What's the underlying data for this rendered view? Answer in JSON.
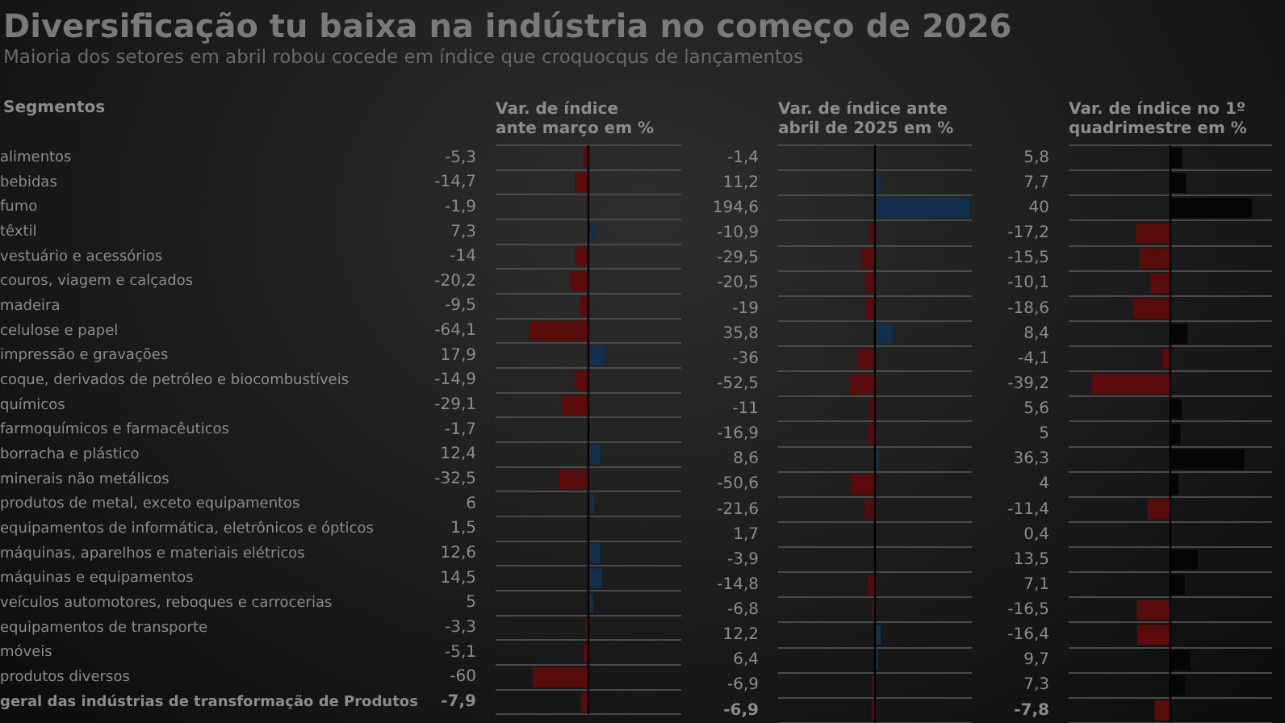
{
  "chart_data": [
    {
      "type": "bar",
      "orientation": "horizontal",
      "title": "Diversificação tu baixa na indústria no começo de 2026",
      "subtitle": "Maioria dos setores em abril robou cocede em índice que croquocqus de lançamentos",
      "xlabel": "Var. de índice ante março em %",
      "annotations": [
        "Segmentos"
      ],
      "tick_labels": "y",
      "grid": "y",
      "categories": [
        "alimentos",
        "bebidas",
        "fumo",
        "têxtil",
        "vestuário e acessórios",
        "couros, viagem e calçados",
        "madeira",
        "celulose e papel",
        "impressão e gravações",
        "coque, derivados de petróleo e biocombustíveis",
        "químicos",
        "farmoquímicos e farmacêuticos",
        "borracha e plástico",
        "minerais não metálicos",
        "produtos de metal, exceto equipamentos",
        "equipamentos de informática, eletrônicos e ópticos",
        "máquinas, aparelhos e materiais elétricos",
        "máquinas e equipamentos",
        "veículos automotores, reboques e carrocerias",
        "equipamentos de transporte",
        "móveis",
        "produtos diversos",
        "geral das indústrias de transformação de Produtos"
      ],
      "values": [
        -5.3,
        -14.7,
        -1.9,
        7.3,
        -14,
        -20.2,
        -9.5,
        -64.1,
        17.9,
        -14.9,
        -29.1,
        -1.7,
        12.4,
        -32.5,
        6,
        1.5,
        12.6,
        14.5,
        5,
        -3.3,
        -5.1,
        -60,
        -7.9
      ],
      "value_labels": [
        "-5,3",
        "-14,7",
        "-1,9",
        "7,3",
        "-14",
        "-20,2",
        "-9,5",
        "-64,1",
        "17,9",
        "-14,9",
        "-29,1",
        "-1,7",
        "12,4",
        "-32,5",
        "6",
        "1,5",
        "12,6",
        "14,5",
        "5",
        "-3,3",
        "-5,1",
        "-60",
        "-7,9"
      ],
      "colors": [
        "#5a0b0b",
        "#5a0b0b",
        "#5a0b0b",
        "#12304d",
        "#5a0b0b",
        "#5a0b0b",
        "#5a0b0b",
        "#5a0b0b",
        "#12304d",
        "#5a0b0b",
        "#5a0b0b",
        "#5a0b0b",
        "#12304d",
        "#5a0b0b",
        "#12304d",
        "#12304d",
        "#12304d",
        "#12304d",
        "#12304d",
        "#5a0b0b",
        "#5a0b0b",
        "#5a0b0b",
        "#5a0b0b"
      ]
    },
    {
      "type": "bar",
      "orientation": "horizontal",
      "xlabel": "Var. de índice ante abril de 2025 em %",
      "tick_labels": false,
      "grid": "y",
      "categories": [
        null,
        null,
        null,
        null,
        null,
        null,
        null,
        null,
        null,
        null,
        null,
        null,
        null,
        null,
        null,
        null,
        null,
        null,
        null,
        null,
        null,
        null,
        null
      ],
      "values": [
        -1.4,
        11.2,
        194.6,
        -10.9,
        -29.5,
        -20.5,
        -19,
        35.8,
        -36,
        -52.5,
        -11,
        -16.9,
        8.6,
        -50.6,
        -21.6,
        1.7,
        -3.9,
        -14.8,
        -6.8,
        12.2,
        6.4,
        -6.9,
        -6.9
      ],
      "value_labels": [
        "-1,4",
        "11,2",
        "194,6",
        "-10,9",
        "-29,5",
        "-20,5",
        "-19",
        "35,8",
        "-36",
        "-52,5",
        "-11",
        "-16,9",
        "8,6",
        "-50,6",
        "-21,6",
        "1,7",
        "-3,9",
        "-14,8",
        "-6,8",
        "12,2",
        "6,4",
        "-6,9",
        "-6,9"
      ],
      "colors": [
        "#5a0b0b",
        "#12304d",
        "#12304d",
        "#5a0b0b",
        "#5a0b0b",
        "#5a0b0b",
        "#5a0b0b",
        "#12304d",
        "#5a0b0b",
        "#5a0b0b",
        "#5a0b0b",
        "#5a0b0b",
        "#12304d",
        "#5a0b0b",
        "#5a0b0b",
        "#12304d",
        "#5a0b0b",
        "#5a0b0b",
        "#5a0b0b",
        "#12304d",
        "#12304d",
        "#5a0b0b",
        "#5a0b0b"
      ]
    },
    {
      "type": "bar",
      "orientation": "horizontal",
      "xlabel": "Var. de índice no 1º quadrimestre em %",
      "tick_labels": false,
      "grid": "y",
      "categories": [
        null,
        null,
        null,
        null,
        null,
        null,
        null,
        null,
        null,
        null,
        null,
        null,
        null,
        null,
        null,
        null,
        null,
        null,
        null,
        null,
        null,
        null,
        null
      ],
      "values": [
        5.8,
        7.7,
        40,
        -17.2,
        -15.5,
        -10.1,
        -18.6,
        8.4,
        -4.1,
        -39.2,
        5.6,
        5,
        36.3,
        4,
        -11.4,
        0.4,
        13.5,
        7.1,
        -16.5,
        -16.4,
        9.7,
        7.3,
        -7.8
      ],
      "value_labels": [
        "5,8",
        "7,7",
        "40",
        "-17,2",
        "-15,5",
        "-10,1",
        "-18,6",
        "8,4",
        "-4,1",
        "-39,2",
        "5,6",
        "5",
        "36,3",
        "4",
        "-11,4",
        "0,4",
        "13,5",
        "7,1",
        "-16,5",
        "-16,4",
        "9,7",
        "7,3",
        "-7,8"
      ],
      "colors": [
        "#050505",
        "#050505",
        "#050505",
        "#5a0b0b",
        "#5a0b0b",
        "#5a0b0b",
        "#5a0b0b",
        "#050505",
        "#5a0b0b",
        "#5a0b0b",
        "#050505",
        "#050505",
        "#050505",
        "#050505",
        "#5a0b0b",
        "#050505",
        "#050505",
        "#050505",
        "#5a0b0b",
        "#5a0b0b",
        "#050505",
        "#050505",
        "#5a0b0b"
      ]
    }
  ]
}
